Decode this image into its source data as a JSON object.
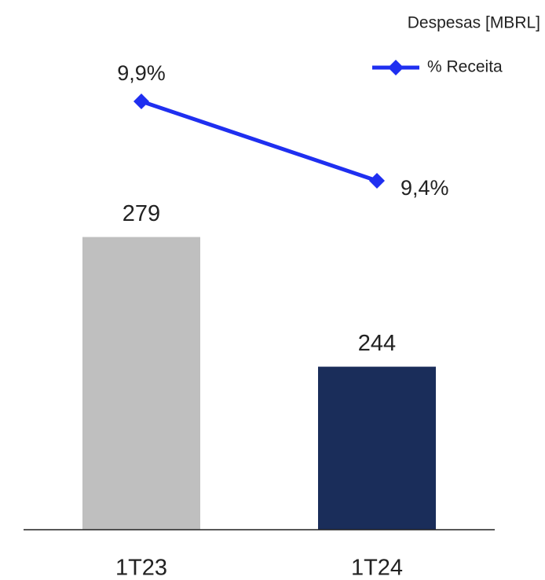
{
  "chart_data": {
    "type": "bar",
    "categories": [
      "1T23",
      "1T24"
    ],
    "series": [
      {
        "name": "Despesas [MBRL]",
        "type": "bar",
        "colors": [
          "#bfbfbf",
          "#1a2d5a"
        ],
        "values": [
          279,
          244
        ]
      },
      {
        "name": "% Receita",
        "type": "line",
        "axis": "y2",
        "color": "#1f2ff0",
        "values": [
          9.9,
          9.4
        ],
        "value_labels": [
          "9,9%",
          "9,4%"
        ]
      }
    ],
    "ylim": [
      200,
      340
    ],
    "y2lim": [
      7.2,
      10.47
    ],
    "legend": "top-right"
  }
}
